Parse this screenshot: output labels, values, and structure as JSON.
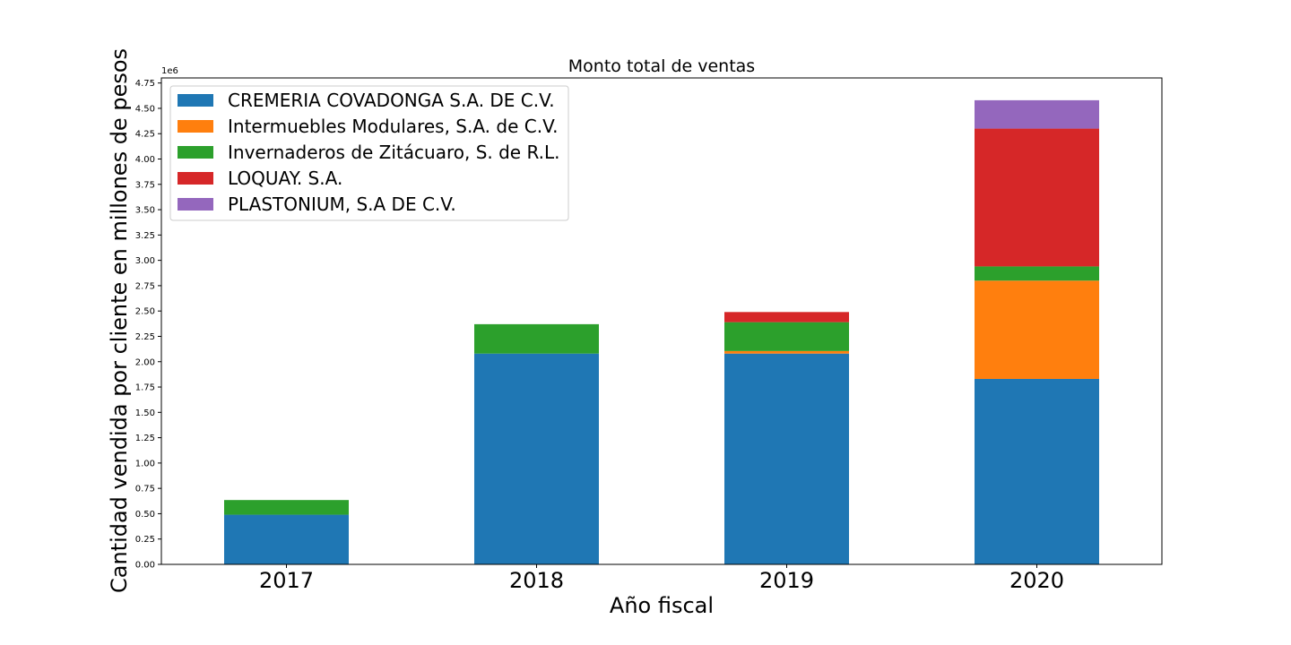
{
  "chart_data": {
    "type": "bar",
    "stacked": true,
    "title": "Monto total de ventas",
    "xlabel": "Año fiscal",
    "ylabel": "Cantidad vendida por cliente en millones de pesos",
    "y_offset_text": "1e6",
    "categories": [
      "2017",
      "2018",
      "2019",
      "2020"
    ],
    "ylim": [
      0,
      4800000
    ],
    "yticks": [
      0,
      250000,
      500000,
      750000,
      1000000,
      1250000,
      1500000,
      1750000,
      2000000,
      2250000,
      2500000,
      2750000,
      3000000,
      3250000,
      3500000,
      3750000,
      4000000,
      4250000,
      4500000,
      4750000
    ],
    "ytick_labels": [
      "0.00",
      "0.25",
      "0.50",
      "0.75",
      "1.00",
      "1.25",
      "1.50",
      "1.75",
      "2.00",
      "2.25",
      "2.50",
      "2.75",
      "3.00",
      "3.25",
      "3.50",
      "3.75",
      "4.00",
      "4.25",
      "4.50",
      "4.75"
    ],
    "grid": false,
    "legend_position": "top-left",
    "series": [
      {
        "name": "CREMERIA COVADONGA S.A. DE C.V.",
        "color": "#1f77b4",
        "values": [
          490000,
          2080000,
          2080000,
          1830000
        ]
      },
      {
        "name": "Intermuebles Modulares, S.A. de C.V.",
        "color": "#ff7f0e",
        "values": [
          0,
          0,
          25000,
          970000
        ]
      },
      {
        "name": "Invernaderos de Zitácuaro, S. de R.L.",
        "color": "#2ca02c",
        "values": [
          145000,
          290000,
          285000,
          140000
        ]
      },
      {
        "name": "LOQUAY. S.A.",
        "color": "#d62728",
        "values": [
          0,
          0,
          100000,
          1360000
        ]
      },
      {
        "name": "PLASTONIUM, S.A DE C.V.",
        "color": "#9467bd",
        "values": [
          0,
          0,
          0,
          280000
        ]
      }
    ]
  }
}
